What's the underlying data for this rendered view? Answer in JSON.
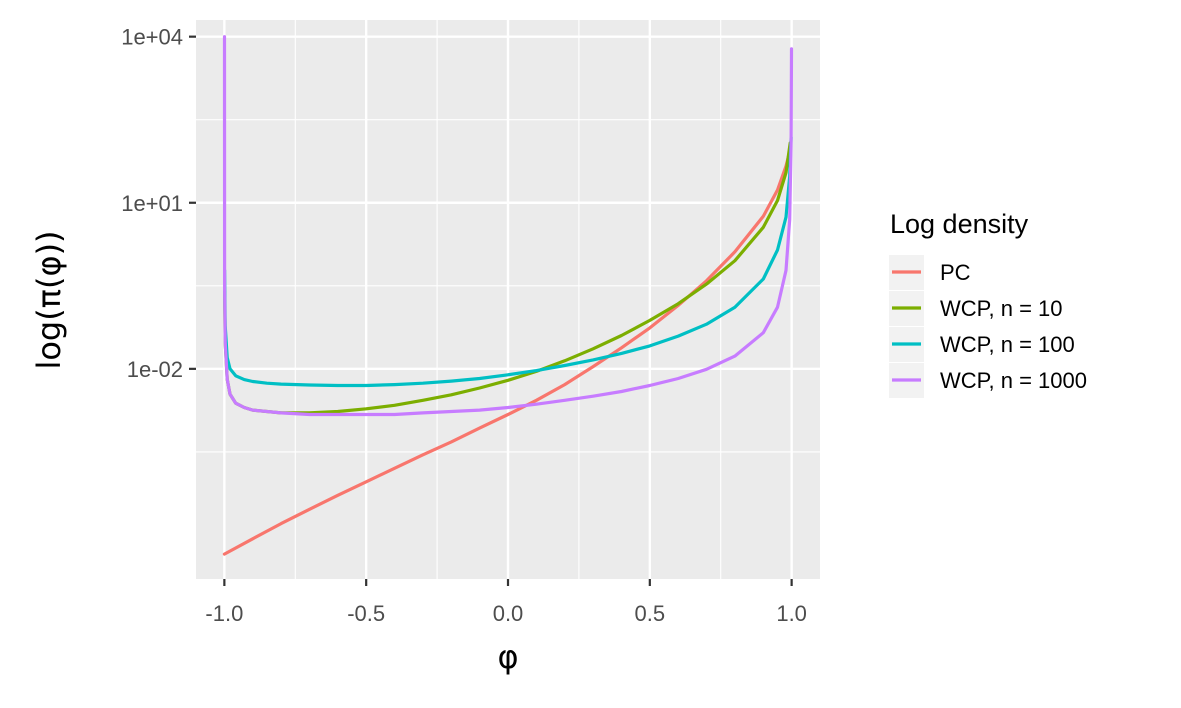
{
  "chart_data": {
    "type": "line",
    "title": "",
    "xlabel": "φ",
    "ylabel": "log(π(φ))",
    "x_scale": "linear",
    "y_scale": "log10",
    "xlim": [
      -1.1,
      1.1
    ],
    "ylim": [
      1.6e-06,
      20000
    ],
    "x_ticks": [
      {
        "value": -1.0,
        "label": "-1.0"
      },
      {
        "value": -0.5,
        "label": "-0.5"
      },
      {
        "value": 0.0,
        "label": "0.0"
      },
      {
        "value": 0.5,
        "label": "0.5"
      },
      {
        "value": 1.0,
        "label": "1.0"
      }
    ],
    "y_ticks": [
      {
        "value": 0.01,
        "label": "1e-02"
      },
      {
        "value": 10,
        "label": "1e+01"
      },
      {
        "value": 10000,
        "label": "1e+04"
      }
    ],
    "grid": true,
    "background": "#EBEBEB",
    "legend": {
      "title": "Log density",
      "placement": "right"
    },
    "series": [
      {
        "name": "PC",
        "color": "#F8766D",
        "x": [
          -1.0,
          -0.9,
          -0.8,
          -0.7,
          -0.6,
          -0.5,
          -0.4,
          -0.3,
          -0.2,
          -0.1,
          0.0,
          0.1,
          0.2,
          0.3,
          0.4,
          0.5,
          0.6,
          0.7,
          0.8,
          0.9,
          0.95,
          0.98,
          0.995
        ],
        "y": [
          4.5e-06,
          8.5e-06,
          1.6e-05,
          2.9e-05,
          5.2e-05,
          9.1e-05,
          0.00016,
          0.00028,
          0.00048,
          0.00085,
          0.0015,
          0.0027,
          0.0052,
          0.011,
          0.024,
          0.055,
          0.14,
          0.39,
          1.3,
          5.7,
          17,
          46,
          91
        ]
      },
      {
        "name": "WCP, n = 10",
        "color": "#7CAE00",
        "x": [
          -0.999,
          -0.997,
          -0.99,
          -0.98,
          -0.96,
          -0.93,
          -0.9,
          -0.85,
          -0.8,
          -0.7,
          -0.6,
          -0.5,
          -0.4,
          -0.3,
          -0.2,
          -0.1,
          0.0,
          0.1,
          0.2,
          0.3,
          0.4,
          0.5,
          0.6,
          0.7,
          0.8,
          0.9,
          0.95,
          0.98,
          0.995
        ],
        "y": [
          0.25,
          0.03,
          0.0065,
          0.0035,
          0.0024,
          0.002,
          0.0018,
          0.0017,
          0.0016,
          0.0016,
          0.0017,
          0.0019,
          0.0022,
          0.0027,
          0.0034,
          0.0045,
          0.0062,
          0.009,
          0.014,
          0.023,
          0.04,
          0.075,
          0.15,
          0.34,
          0.9,
          3.6,
          11,
          35,
          120
        ]
      },
      {
        "name": "WCP, n = 100",
        "color": "#00BFC4",
        "x": [
          -0.999,
          -0.997,
          -0.99,
          -0.98,
          -0.96,
          -0.93,
          -0.9,
          -0.85,
          -0.8,
          -0.7,
          -0.6,
          -0.5,
          -0.4,
          -0.3,
          -0.2,
          -0.1,
          0.0,
          0.1,
          0.2,
          0.3,
          0.4,
          0.5,
          0.6,
          0.7,
          0.8,
          0.9,
          0.95,
          0.98,
          0.993,
          0.998
        ],
        "y": [
          0.6,
          0.06,
          0.016,
          0.01,
          0.0075,
          0.0064,
          0.0059,
          0.0055,
          0.0053,
          0.0051,
          0.005,
          0.005,
          0.0052,
          0.0055,
          0.006,
          0.0067,
          0.0078,
          0.0093,
          0.0115,
          0.0145,
          0.019,
          0.026,
          0.039,
          0.064,
          0.13,
          0.42,
          1.4,
          5.5,
          30,
          150
        ]
      },
      {
        "name": "WCP, n = 1000",
        "color": "#C77CFF",
        "x": [
          -0.9995,
          -0.999,
          -0.997,
          -0.99,
          -0.98,
          -0.96,
          -0.93,
          -0.9,
          -0.85,
          -0.8,
          -0.7,
          -0.6,
          -0.5,
          -0.4,
          -0.3,
          -0.2,
          -0.1,
          0.0,
          0.1,
          0.2,
          0.3,
          0.4,
          0.5,
          0.6,
          0.7,
          0.8,
          0.9,
          0.95,
          0.98,
          0.993,
          0.998,
          0.9995
        ],
        "y": [
          10000,
          0.3,
          0.03,
          0.0065,
          0.0035,
          0.0024,
          0.002,
          0.0018,
          0.0017,
          0.0016,
          0.0015,
          0.0015,
          0.0015,
          0.0015,
          0.0016,
          0.0017,
          0.0018,
          0.002,
          0.0023,
          0.0027,
          0.0032,
          0.0039,
          0.005,
          0.0067,
          0.0098,
          0.017,
          0.045,
          0.13,
          0.6,
          5,
          120,
          6000
        ]
      }
    ]
  }
}
